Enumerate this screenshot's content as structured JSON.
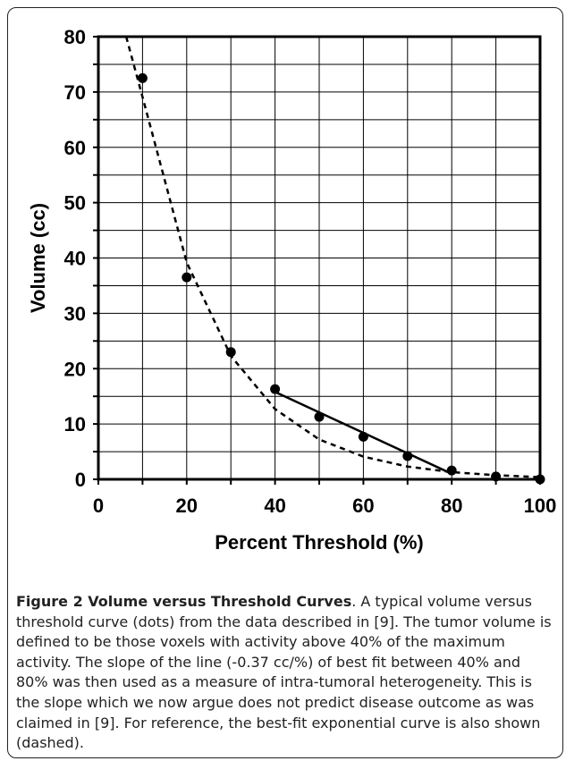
{
  "chart_data": {
    "type": "scatter",
    "xlabel": "Percent Threshold (%)",
    "ylabel": "Volume (cc)",
    "xlim": [
      0,
      100
    ],
    "ylim": [
      0,
      80
    ],
    "xticks": [
      "0",
      "20",
      "40",
      "60",
      "80",
      "100"
    ],
    "yticks": [
      "0",
      "10",
      "20",
      "30",
      "40",
      "50",
      "60",
      "70",
      "80"
    ],
    "grid": true,
    "series": [
      {
        "style": "dots",
        "x": [
          10,
          20,
          30,
          40,
          50,
          60,
          70,
          80,
          90,
          100
        ],
        "y": [
          72.5,
          36.5,
          23,
          16.3,
          11.3,
          7.7,
          4.2,
          1.6,
          0.5,
          0
        ]
      },
      {
        "style": "solid line (best fit 40%-80%)",
        "x": [
          40,
          80
        ],
        "y": [
          15.8,
          1.0
        ]
      },
      {
        "style": "dashed exponential fit",
        "x": [
          6.3,
          10,
          20,
          30,
          40,
          50,
          60,
          70,
          80,
          90,
          100
        ],
        "y": [
          80,
          69.1,
          39.2,
          22.3,
          12.7,
          7.2,
          4.1,
          2.3,
          1.3,
          0.75,
          0.4
        ]
      }
    ]
  },
  "caption": {
    "label": "Figure 2 Volume versus Threshold Curves",
    "text": ". A typical volume versus threshold curve (dots) from the data described in [9]. The tumor volume is defined to be those voxels with activity above 40% of the maximum activity. The slope of the line (-0.37 cc/%) of best fit between 40% and 80% was then used as a measure of intra-tumoral heterogeneity. This is the slope which we now argue does not predict disease outcome as was claimed in [9]. For reference, the best-fit exponential curve is also shown (dashed)."
  }
}
